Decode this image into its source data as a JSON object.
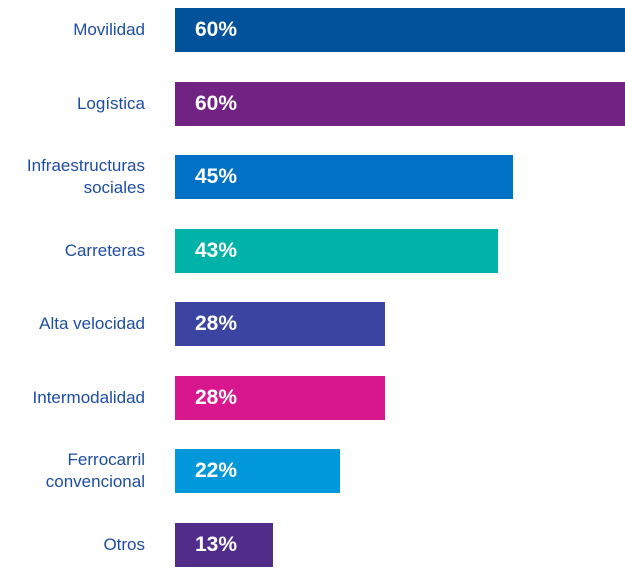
{
  "chart_data": {
    "type": "bar",
    "orientation": "horizontal",
    "categories": [
      "Movilidad",
      "Logística",
      "Infraestructuras sociales",
      "Carreteras",
      "Alta velocidad",
      "Intermodalidad",
      "Ferrocarril convencional",
      "Otros"
    ],
    "values": [
      60,
      60,
      45,
      43,
      28,
      28,
      22,
      13
    ],
    "value_labels": [
      "60%",
      "60%",
      "45%",
      "43%",
      "28%",
      "28%",
      "22%",
      "13%"
    ],
    "colors": [
      "#00529b",
      "#702383",
      "#0071c5",
      "#00b2a8",
      "#3b44a0",
      "#d8168e",
      "#0098db",
      "#512d8a"
    ]
  }
}
